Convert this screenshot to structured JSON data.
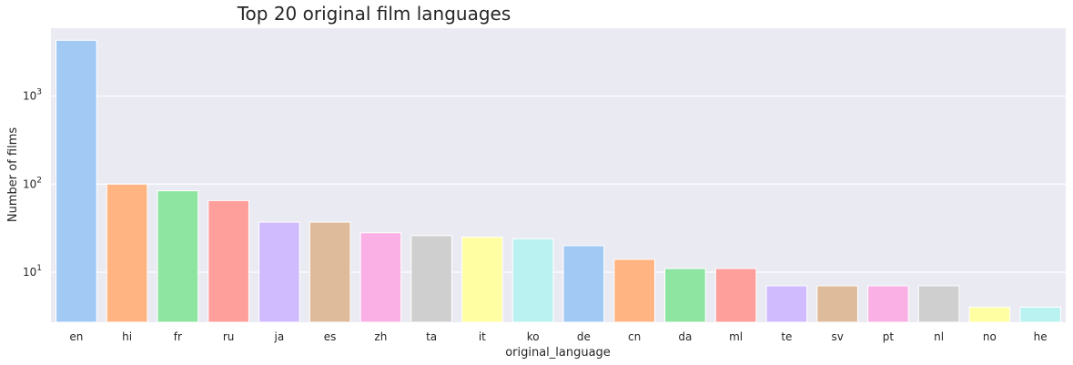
{
  "chart_data": {
    "type": "bar",
    "title": "Top 20 original film languages",
    "xlabel": "original_language",
    "ylabel": "Number of films",
    "yscale": "log",
    "ylim": [
      2.7,
      5900
    ],
    "yticks": [
      {
        "value": 10,
        "base": "10",
        "exp": "1"
      },
      {
        "value": 100,
        "base": "10",
        "exp": "2"
      },
      {
        "value": 1000,
        "base": "10",
        "exp": "3"
      }
    ],
    "categories": [
      "en",
      "hi",
      "fr",
      "ru",
      "ja",
      "es",
      "zh",
      "ta",
      "it",
      "ko",
      "de",
      "cn",
      "da",
      "ml",
      "te",
      "sv",
      "pt",
      "nl",
      "no",
      "he"
    ],
    "values": [
      4300,
      100,
      84,
      65,
      37,
      37,
      28,
      26,
      25,
      24,
      20,
      14,
      11,
      11,
      7,
      7,
      7,
      7,
      4,
      4
    ],
    "colors": [
      "#a1c9f4",
      "#ffb482",
      "#8de5a1",
      "#ff9f9b",
      "#d0bbff",
      "#debb9b",
      "#fab0e4",
      "#cfcfcf",
      "#fffea3",
      "#b9f2f0",
      "#a1c9f4",
      "#ffb482",
      "#8de5a1",
      "#ff9f9b",
      "#d0bbff",
      "#debb9b",
      "#fab0e4",
      "#cfcfcf",
      "#fffea3",
      "#b9f2f0"
    ],
    "background": "#eaeaf2",
    "grid": true
  }
}
